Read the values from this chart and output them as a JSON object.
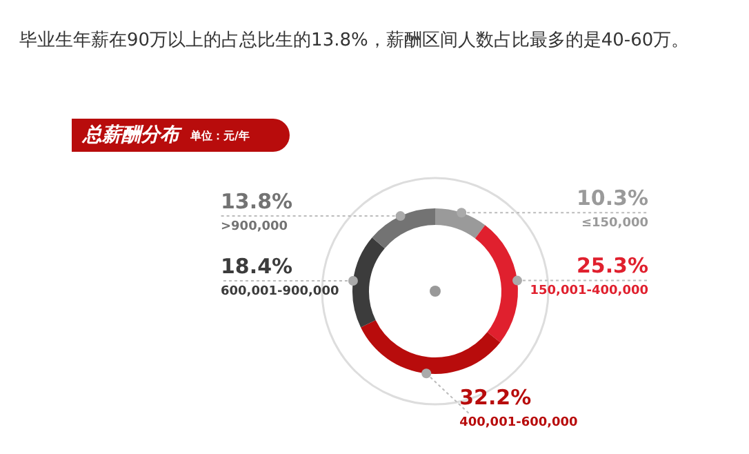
{
  "chart_data": {
    "type": "donut",
    "title": "总薪酬分布",
    "subtitle": "单位：元/年",
    "annotations": [
      "毕业生年薪在90万以上的占总比生的13.8%，薪酬区间人数占比最多的是40-60万。"
    ],
    "categories": [
      "≤150,000",
      "150,001-400,000",
      "400,001-600,000",
      "600,001-900,000",
      ">900,000"
    ],
    "values": [
      10.3,
      25.3,
      32.2,
      18.4,
      13.8
    ],
    "value_labels": [
      "10.3%",
      "25.3%",
      "32.2%",
      "18.4%",
      "13.8%"
    ],
    "colors": [
      "#9a9a9a",
      "#e0202e",
      "#b80c0c",
      "#3c3c3c",
      "#737373"
    ],
    "legend": false
  }
}
